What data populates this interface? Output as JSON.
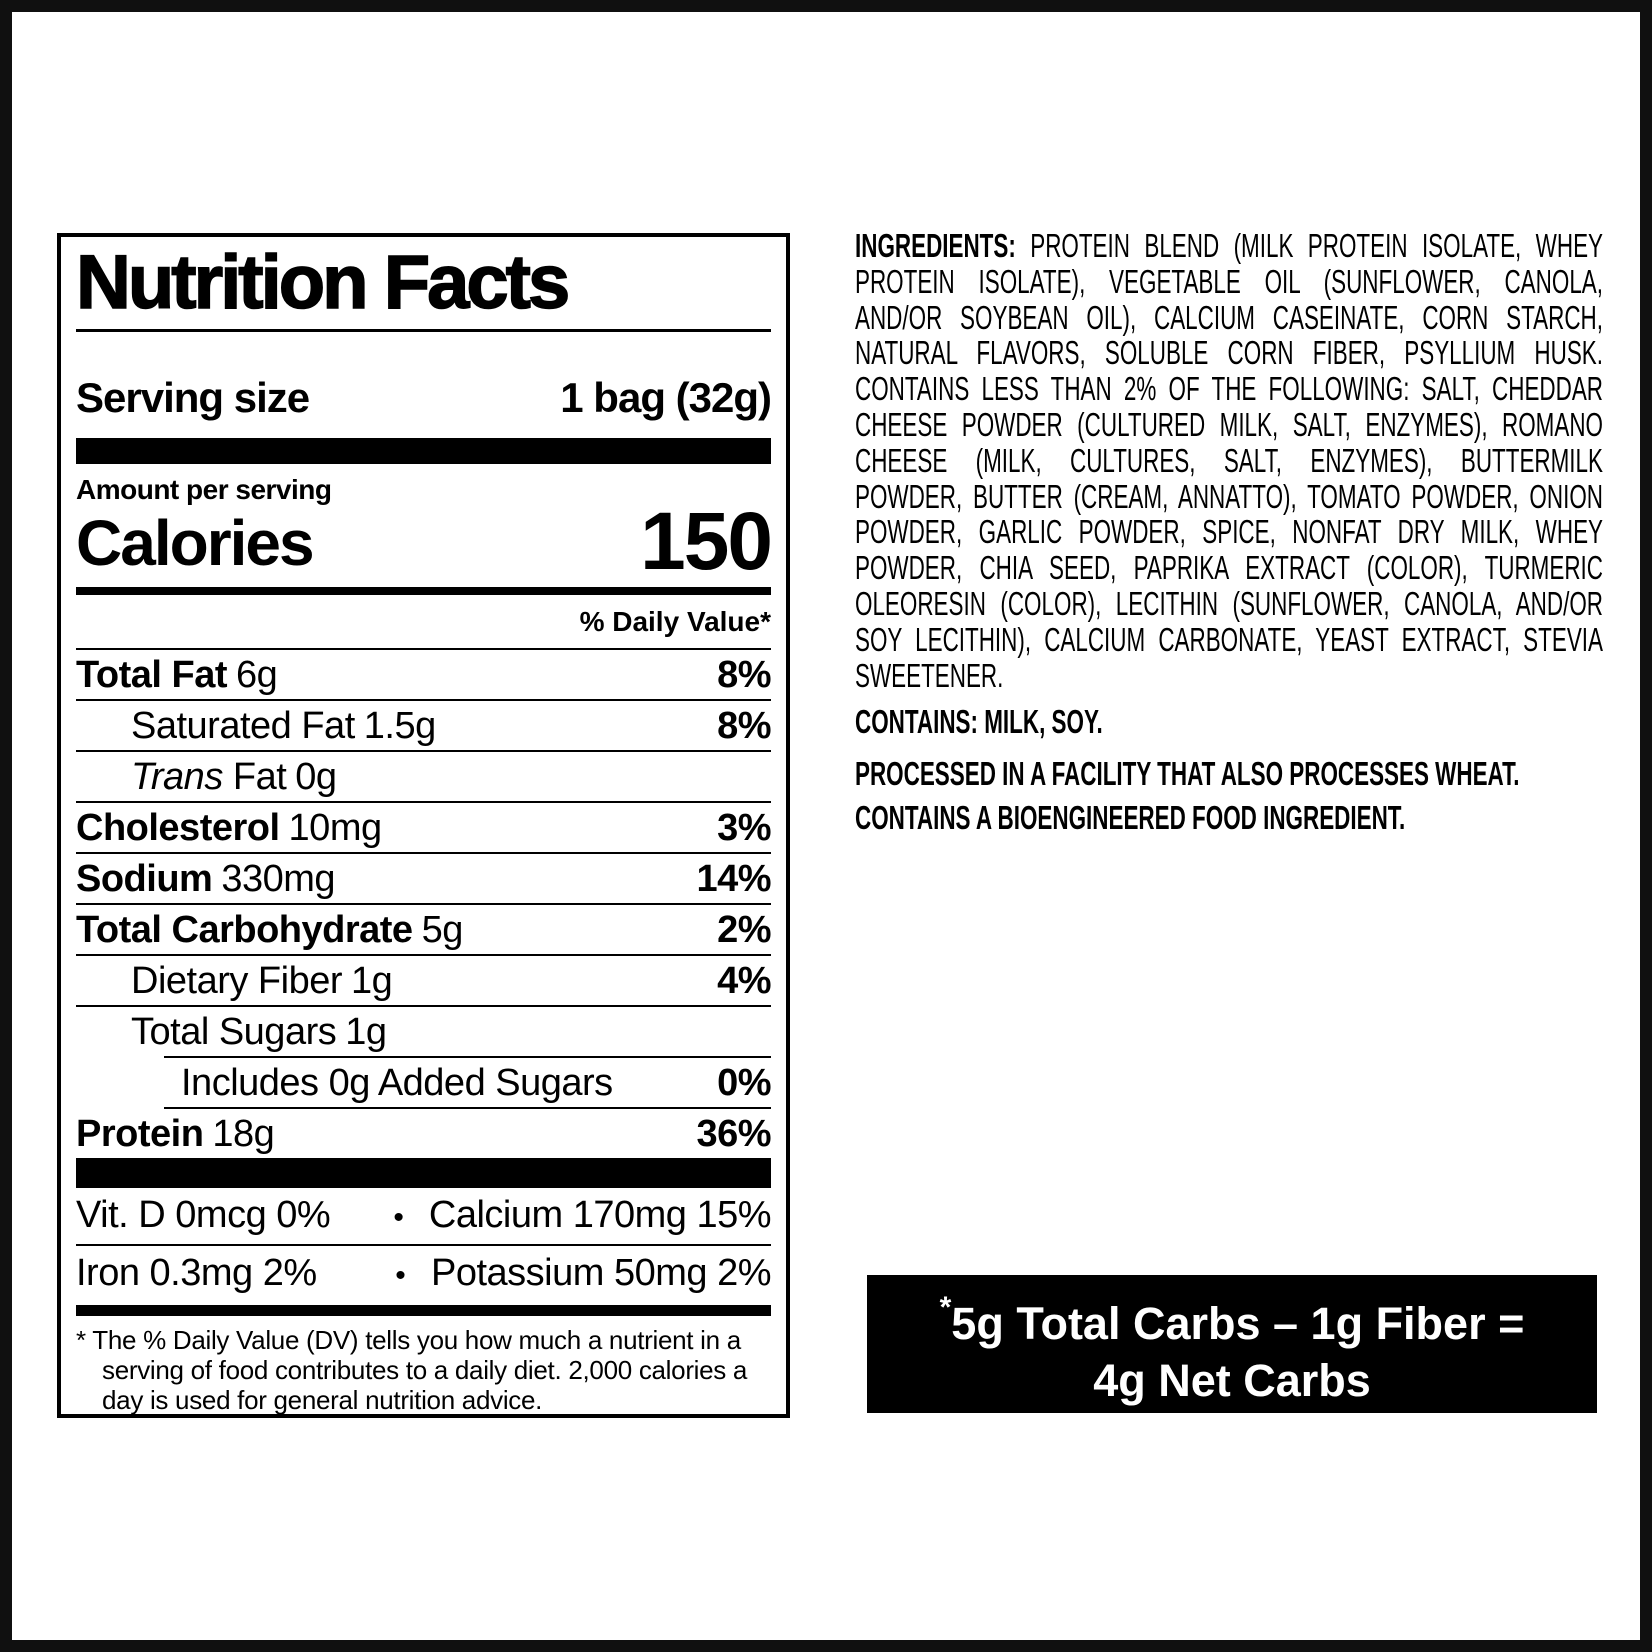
{
  "canvas": {
    "background": "#ffffff",
    "frame_color": "#101010"
  },
  "nutrition_label": {
    "title": "Nutrition Facts",
    "serving_size_label": "Serving size",
    "serving_size_value": "1 bag (32g)",
    "amount_per_serving": "Amount per serving",
    "calories_label": "Calories",
    "calories_value": "150",
    "daily_value_header": "% Daily Value*",
    "rows": [
      {
        "name": "Total Fat",
        "amount": "6g",
        "dv": "8%"
      },
      {
        "name": "Saturated Fat",
        "amount": "1.5g",
        "dv": "8%"
      },
      {
        "name_italic": "Trans",
        "name": " Fat",
        "amount": "0g",
        "dv": ""
      },
      {
        "name": "Cholesterol",
        "amount": "10mg",
        "dv": "3%"
      },
      {
        "name": "Sodium",
        "amount": "330mg",
        "dv": "14%"
      },
      {
        "name": "Total Carbohydrate",
        "amount": "5g",
        "dv": "2%"
      },
      {
        "name": "Dietary Fiber",
        "amount": "1g",
        "dv": "4%"
      },
      {
        "name": "Total Sugars",
        "amount": "1g",
        "dv": ""
      },
      {
        "name": "Includes 0g Added Sugars",
        "amount": "",
        "dv": "0%"
      },
      {
        "name": "Protein",
        "amount": "18g",
        "dv": "36%"
      }
    ],
    "micronutrients": [
      {
        "left": "Vit. D 0mcg 0%",
        "bullet": "•",
        "right": "Calcium 170mg 15%"
      },
      {
        "left": "Iron 0.3mg 2%",
        "bullet": "•",
        "right": "Potassium 50mg 2%"
      }
    ],
    "footnote": "* The % Daily Value (DV) tells you how much a nutrient in a serving of food contributes to a daily diet. 2,000 calories a day is used for general nutrition advice."
  },
  "ingredients_panel": {
    "lead": "INGREDIENTS:",
    "body": "PROTEIN BLEND (MILK PROTEIN ISOLATE, WHEY PROTEIN ISOLATE), VEGETABLE OIL (SUNFLOWER, CANOLA, AND/OR SOYBEAN OIL), CALCIUM CASEINATE, CORN STARCH, NATURAL FLAVORS, SOLUBLE CORN FIBER, PSYLLIUM HUSK. CONTAINS LESS THAN 2% OF THE FOLLOWING: SALT, CHEDDAR CHEESE POWDER (CULTURED MILK, SALT, ENZYMES), ROMANO CHEESE (MILK, CULTURES, SALT, ENZYMES), BUTTERMILK POWDER, BUTTER (CREAM, ANNATTO), TOMATO POWDER, ONION POWDER, GARLIC POWDER, SPICE, NONFAT DRY MILK, WHEY POWDER, CHIA SEED, PAPRIKA EXTRACT (COLOR), TURMERIC OLEORESIN (COLOR), LECITHIN (SUNFLOWER, CANOLA, AND/OR SOY LECITHIN), CALCIUM CARBONATE, YEAST EXTRACT, STEVIA SWEETENER.",
    "contains": "CONTAINS: MILK, SOY.",
    "facility": "PROCESSED IN A FACILITY THAT ALSO PROCESSES WHEAT.",
    "bioengineered": "CONTAINS A BIOENGINEERED FOOD INGREDIENT."
  },
  "net_carbs_box": {
    "asterisk": "*",
    "line1": "5g Total Carbs – 1g Fiber =",
    "line2": "4g Net Carbs",
    "background": "#000000",
    "text_color": "#ffffff"
  }
}
